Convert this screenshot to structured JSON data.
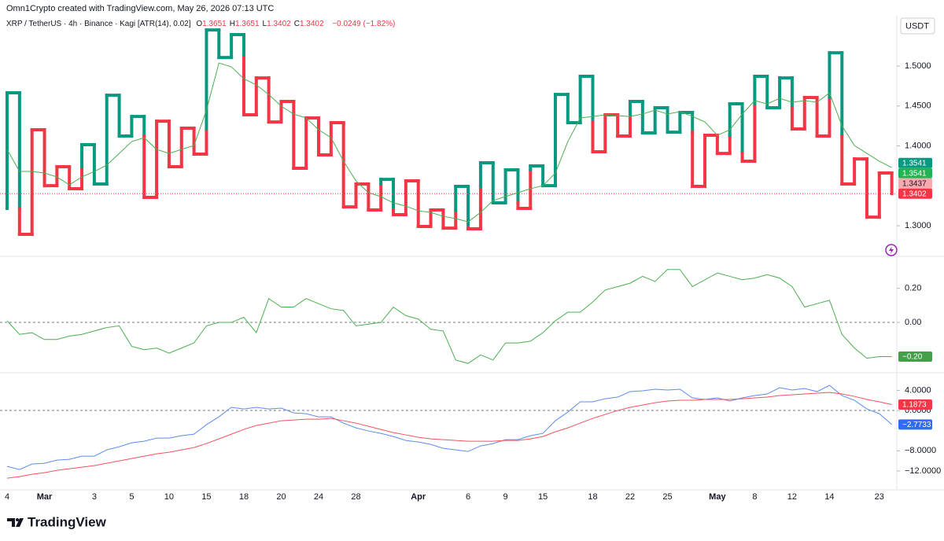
{
  "header": {
    "credit": "Omn1Crypto created with TradingView.com, May 26, 2026 07:13 UTC",
    "symbol": "XRP / TetherUS · 4h · Binance · Kagi [ATR(14), 0.02]",
    "ohlc": [
      {
        "key": "O",
        "value": 1.3651
      },
      {
        "key": "H",
        "value": 1.3651
      },
      {
        "key": "L",
        "value": 1.3402
      },
      {
        "key": "C",
        "value": 1.3402
      }
    ],
    "change": "−0.0249 (−1.82%)",
    "currency": "USDT"
  },
  "footer": {
    "brand": "TradingView"
  },
  "chart_data": [
    {
      "type": "kagi",
      "up_color": "#089981",
      "down_color": "#f23645",
      "values": [
        1.3217,
        1.4665,
        1.2892,
        1.4202,
        1.3502,
        1.3739,
        1.3463,
        1.4015,
        1.3522,
        1.4635,
        1.4123,
        1.4369,
        1.3355,
        1.431,
        1.3739,
        1.4222,
        1.3897,
        1.5453,
        1.5108,
        1.5394,
        1.4389,
        1.4852,
        1.43,
        1.4557,
        1.3719,
        1.435,
        1.3887,
        1.4291,
        1.3236,
        1.3522,
        1.3197,
        1.3581,
        1.3138,
        1.3562,
        1.299,
        1.3197,
        1.297,
        1.3493,
        1.2961,
        1.3788,
        1.3286,
        1.37,
        1.3217,
        1.3749,
        1.3502,
        1.4645,
        1.4291,
        1.4872,
        1.3926,
        1.4389,
        1.4123,
        1.4557,
        1.4163,
        1.4478,
        1.4172,
        1.4419,
        1.3493,
        1.4133,
        1.3906,
        1.4527,
        1.3808,
        1.4872,
        1.4478,
        1.4852,
        1.4212,
        1.4606,
        1.4123,
        1.5167,
        1.3522,
        1.3837,
        1.3108,
        1.366,
        1.3402
      ],
      "overlay": {
        "color": "#4caf50",
        "values": [
          1.3956,
          1.368,
          1.368,
          1.366,
          1.3611,
          1.3512,
          1.3611,
          1.368,
          1.3759,
          1.3906,
          1.4054,
          1.4103,
          1.3956,
          1.3906,
          1.3956,
          1.4005,
          1.4448,
          1.5039,
          1.499,
          1.4842,
          1.4764,
          1.4645,
          1.4498,
          1.4399,
          1.435,
          1.4202,
          1.4103,
          1.3808,
          1.3562,
          1.3414,
          1.3365,
          1.3286,
          1.3246,
          1.3187,
          1.3167,
          1.3118,
          1.3089,
          1.3049,
          1.3167,
          1.3315,
          1.3365,
          1.3414,
          1.3463,
          1.3502,
          1.366,
          1.4054,
          1.435,
          1.4369,
          1.4389,
          1.4379,
          1.4369,
          1.4399,
          1.4448,
          1.4399,
          1.4429,
          1.4369,
          1.43,
          1.4133,
          1.4202,
          1.4399,
          1.4567,
          1.4527,
          1.4596,
          1.4547,
          1.4567,
          1.4547,
          1.4665,
          1.4251,
          1.4005,
          1.3906,
          1.3808,
          1.3729
        ]
      },
      "ylim": [
        1.2626,
        1.5562
      ],
      "yticks": [
        {
          "value": 1.3,
          "label": "1.3000"
        },
        {
          "value": 1.4,
          "label": "1.4000"
        },
        {
          "value": 1.45,
          "label": "1.4500"
        },
        {
          "value": 1.5,
          "label": "1.5000"
        }
      ],
      "price_labels": [
        {
          "value": 1.3541,
          "color": "#089981"
        },
        {
          "value": 1.3541,
          "color": "#22b352"
        },
        {
          "value": 1.3437,
          "color": "#f7a9b0"
        },
        {
          "value": 1.3402,
          "color": "#f23645"
        }
      ]
    },
    {
      "type": "line",
      "ylim": [
        -0.29,
        0.378
      ],
      "zero_line": true,
      "yticks": [
        {
          "value": 0.2,
          "label": "0.20"
        },
        {
          "value": 0,
          "label": "0.00"
        }
      ],
      "series": [
        {
          "color": "#4caf50",
          "badge_color": "#43a047",
          "last_label": "−0.20",
          "values": [
            0.01,
            -0.07,
            -0.06,
            -0.1,
            -0.1,
            -0.08,
            -0.07,
            -0.05,
            -0.03,
            -0.02,
            -0.14,
            -0.16,
            -0.15,
            -0.18,
            -0.15,
            -0.12,
            -0.02,
            0.0,
            0.0,
            0.03,
            -0.06,
            0.14,
            0.09,
            0.09,
            0.14,
            0.11,
            0.08,
            0.07,
            -0.02,
            -0.01,
            0.0,
            0.09,
            0.04,
            0.02,
            -0.04,
            -0.05,
            -0.22,
            -0.24,
            -0.19,
            -0.22,
            -0.12,
            -0.12,
            -0.11,
            -0.06,
            0.01,
            0.06,
            0.06,
            0.12,
            0.19,
            0.21,
            0.23,
            0.27,
            0.24,
            0.31,
            0.31,
            0.21,
            0.25,
            0.29,
            0.27,
            0.25,
            0.26,
            0.28,
            0.26,
            0.21,
            0.09,
            0.11,
            0.13,
            -0.07,
            -0.15,
            -0.21,
            -0.2,
            -0.2
          ]
        }
      ]
    },
    {
      "type": "line",
      "ylim": [
        -15.6,
        7.19
      ],
      "zero_line": true,
      "yticks": [
        {
          "value": 4,
          "label": "4.0000"
        },
        {
          "value": 0,
          "label": "0.0000"
        },
        {
          "value": -8,
          "label": "−8.0000"
        },
        {
          "value": -12,
          "label": "−12.0000"
        }
      ],
      "categories": [
        "4",
        null,
        null,
        "Mar",
        null,
        null,
        null,
        "3",
        null,
        null,
        "5",
        null,
        null,
        "10",
        null,
        null,
        "15",
        null,
        null,
        "18",
        null,
        null,
        "20",
        null,
        null,
        "24",
        null,
        null,
        "28",
        null,
        null,
        null,
        null,
        "Apr",
        null,
        null,
        null,
        "6",
        null,
        null,
        "9",
        null,
        null,
        "15",
        null,
        null,
        null,
        "18",
        null,
        null,
        "22",
        null,
        null,
        "25",
        null,
        null,
        null,
        "May",
        null,
        null,
        "8",
        null,
        null,
        "12",
        null,
        null,
        "14",
        null,
        null,
        null,
        "23",
        null
      ],
      "series": [
        {
          "color": "#5b8def",
          "badge_color": "#2f6cf0",
          "last_label": "−2.7733",
          "values": [
            -11.09,
            -11.72,
            -10.63,
            -10.47,
            -9.84,
            -9.69,
            -9.06,
            -9.06,
            -7.81,
            -7.19,
            -6.41,
            -6.09,
            -5.47,
            -5.47,
            -5.0,
            -4.69,
            -2.81,
            -1.25,
            0.63,
            0.31,
            0.63,
            0.31,
            0.47,
            -0.47,
            -0.63,
            -1.25,
            -1.25,
            -2.5,
            -3.44,
            -4.06,
            -4.53,
            -5.16,
            -5.94,
            -6.25,
            -6.72,
            -7.5,
            -7.81,
            -8.13,
            -7.03,
            -6.56,
            -5.78,
            -5.78,
            -5.0,
            -4.53,
            -2.03,
            -0.31,
            1.72,
            1.72,
            2.34,
            2.66,
            3.75,
            3.91,
            4.22,
            4.06,
            4.22,
            2.5,
            2.19,
            2.5,
            1.88,
            2.5,
            2.97,
            3.28,
            4.53,
            4.06,
            4.38,
            3.75,
            5.0,
            2.97,
            2.03,
            0.31,
            -0.63,
            -2.7733
          ]
        },
        {
          "color": "#f7525f",
          "badge_color": "#f23645",
          "values": [
            -13.44,
            -13.13,
            -12.66,
            -12.34,
            -11.88,
            -11.56,
            -11.25,
            -10.94,
            -10.47,
            -10.0,
            -9.53,
            -9.06,
            -8.59,
            -8.28,
            -7.81,
            -7.34,
            -6.56,
            -5.63,
            -4.69,
            -3.75,
            -2.97,
            -2.5,
            -2.03,
            -1.88,
            -1.72,
            -1.72,
            -1.56,
            -2.03,
            -2.5,
            -3.13,
            -3.75,
            -4.38,
            -4.84,
            -5.31,
            -5.63,
            -5.78,
            -5.94,
            -6.09,
            -6.09,
            -6.09,
            -5.94,
            -5.94,
            -5.63,
            -5.16,
            -4.22,
            -3.44,
            -2.5,
            -1.56,
            -0.78,
            0.0,
            0.63,
            1.09,
            1.56,
            1.88,
            2.03,
            2.03,
            2.19,
            2.19,
            2.19,
            2.34,
            2.5,
            2.66,
            2.97,
            3.13,
            3.28,
            3.44,
            3.59,
            3.28,
            2.81,
            2.19,
            1.72,
            1.1873
          ]
        }
      ]
    }
  ]
}
